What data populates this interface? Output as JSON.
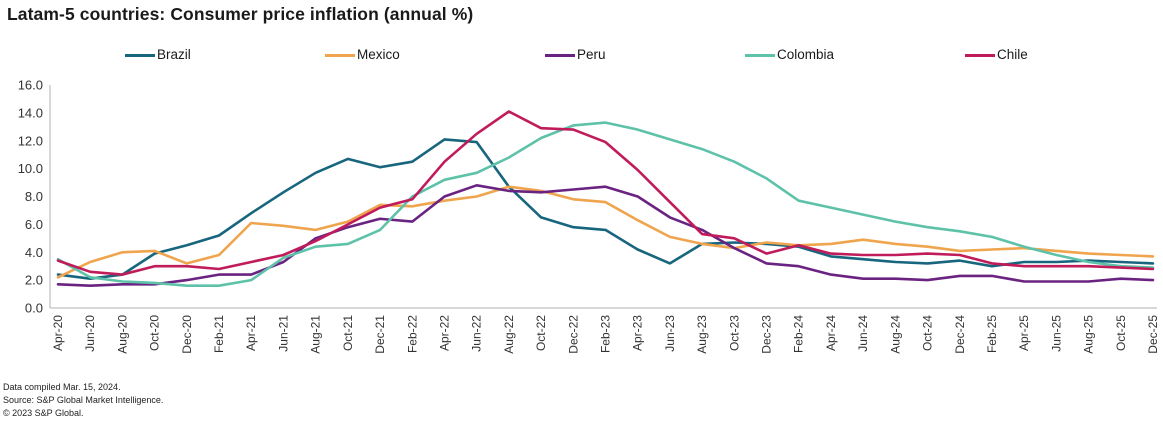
{
  "title": "Latam-5 countries: Consumer price inflation (annual %)",
  "footer": {
    "line1": "Data compiled Mar. 15, 2024.",
    "line2": "Source: S&P Global Market Intelligence.",
    "line3": "© 2023 S&P Global."
  },
  "chart_data": {
    "type": "line",
    "title": "Latam-5 countries: Consumer price inflation (annual %)",
    "xlabel": "",
    "ylabel": "",
    "ylim": [
      0,
      16
    ],
    "yticks": [
      0,
      2,
      4,
      6,
      8,
      10,
      12,
      14,
      16
    ],
    "ytick_format": "one-decimal",
    "grid": false,
    "legend_position": "top",
    "categories": [
      "Apr-20",
      "Jun-20",
      "Aug-20",
      "Oct-20",
      "Dec-20",
      "Feb-21",
      "Apr-21",
      "Jun-21",
      "Aug-21",
      "Oct-21",
      "Dec-21",
      "Feb-22",
      "Apr-22",
      "Jun-22",
      "Aug-22",
      "Oct-22",
      "Dec-22",
      "Feb-23",
      "Apr-23",
      "Jun-23",
      "Aug-23",
      "Oct-23",
      "Dec-23",
      "Feb-24",
      "Apr-24",
      "Jun-24",
      "Aug-24",
      "Oct-24",
      "Dec-24",
      "Feb-25",
      "Apr-25",
      "Jun-25",
      "Aug-25",
      "Oct-25",
      "Dec-25"
    ],
    "series": [
      {
        "name": "Brazil",
        "color": "#17667e",
        "values": [
          2.4,
          2.1,
          2.4,
          3.9,
          4.5,
          5.2,
          6.8,
          8.3,
          9.7,
          10.7,
          10.1,
          10.5,
          12.1,
          11.9,
          8.7,
          6.5,
          5.8,
          5.6,
          4.2,
          3.2,
          4.6,
          4.7,
          4.6,
          4.4,
          3.7,
          3.5,
          3.3,
          3.2,
          3.4,
          3.0,
          3.3,
          3.3,
          3.4,
          3.3,
          3.2
        ]
      },
      {
        "name": "Mexico",
        "color": "#efa44d",
        "values": [
          2.2,
          3.3,
          4.0,
          4.1,
          3.2,
          3.8,
          6.1,
          5.9,
          5.6,
          6.2,
          7.4,
          7.3,
          7.7,
          8.0,
          8.7,
          8.4,
          7.8,
          7.6,
          6.3,
          5.1,
          4.6,
          4.3,
          4.7,
          4.5,
          4.6,
          4.9,
          4.6,
          4.4,
          4.1,
          4.2,
          4.3,
          4.1,
          3.9,
          3.8,
          3.7
        ]
      },
      {
        "name": "Peru",
        "color": "#6b2382",
        "values": [
          1.7,
          1.6,
          1.7,
          1.7,
          2.0,
          2.4,
          2.4,
          3.3,
          5.0,
          5.8,
          6.4,
          6.2,
          8.0,
          8.8,
          8.4,
          8.3,
          8.5,
          8.7,
          8.0,
          6.5,
          5.6,
          4.3,
          3.2,
          3.0,
          2.4,
          2.1,
          2.1,
          2.0,
          2.3,
          2.3,
          1.9,
          1.9,
          1.9,
          2.1,
          2.0
        ]
      },
      {
        "name": "Colombia",
        "color": "#5ec2a9",
        "values": [
          3.5,
          2.2,
          1.9,
          1.8,
          1.6,
          1.6,
          2.0,
          3.6,
          4.4,
          4.6,
          5.6,
          8.0,
          9.2,
          9.7,
          10.8,
          12.2,
          13.1,
          13.3,
          12.8,
          12.1,
          11.4,
          10.5,
          9.3,
          7.7,
          7.2,
          6.7,
          6.2,
          5.8,
          5.5,
          5.1,
          4.4,
          3.8,
          3.3,
          3.0,
          2.9
        ]
      },
      {
        "name": "Chile",
        "color": "#c01b5a",
        "values": [
          3.4,
          2.6,
          2.4,
          3.0,
          3.0,
          2.8,
          3.3,
          3.8,
          4.8,
          6.0,
          7.2,
          7.8,
          10.5,
          12.5,
          14.1,
          12.9,
          12.8,
          11.9,
          9.9,
          7.6,
          5.3,
          5.0,
          3.9,
          4.5,
          3.9,
          3.8,
          3.8,
          3.9,
          3.8,
          3.2,
          3.0,
          3.0,
          3.0,
          2.9,
          2.8
        ]
      }
    ]
  }
}
